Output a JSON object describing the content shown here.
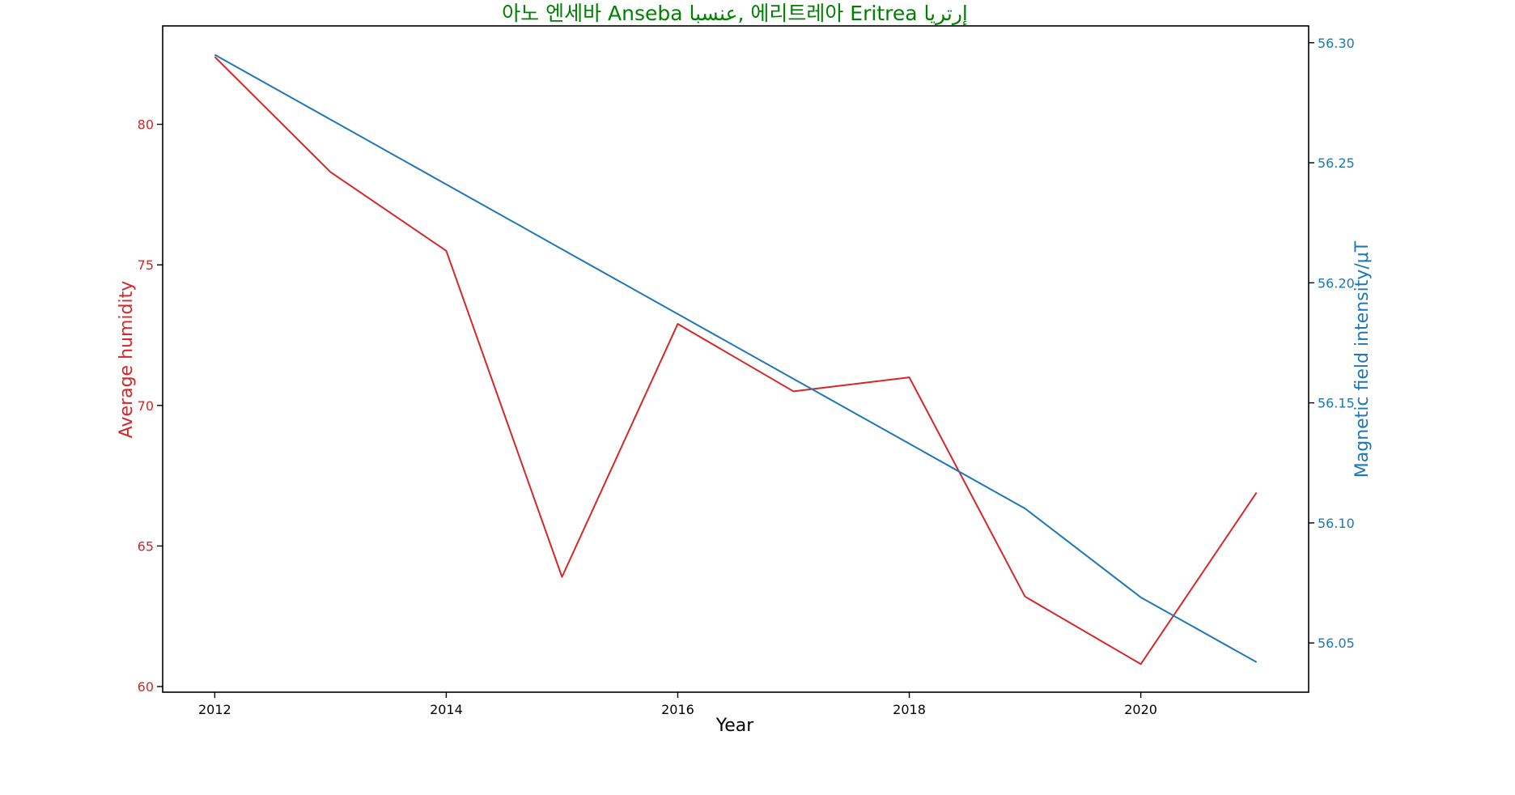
{
  "colors": {
    "title": "#008000",
    "left_axis": "#d62728",
    "right_axis": "#1f77b4",
    "axes": "#000000",
    "background": "#ffffff"
  },
  "chart_data": {
    "type": "line",
    "title": "아노 엔세바 Anseba عنسبا, 에리트레아 Eritrea إرتريا",
    "xlabel": "Year",
    "ylabel_left": "Average humidity",
    "ylabel_right": "Magnetic field intensity/μT",
    "x": [
      2012,
      2013,
      2014,
      2015,
      2016,
      2017,
      2018,
      2019,
      2020,
      2021
    ],
    "x_ticks": [
      2012,
      2014,
      2016,
      2018,
      2020
    ],
    "x_tick_labels": [
      "2012",
      "2014",
      "2016",
      "2018",
      "2020"
    ],
    "xlim": [
      2011.55,
      2021.45
    ],
    "ylim_left": [
      59.8,
      83.5
    ],
    "ylim_right": [
      56.0295,
      56.307
    ],
    "y_ticks_left": [
      60,
      65,
      70,
      75,
      80
    ],
    "y_tick_labels_left": [
      "60",
      "65",
      "70",
      "75",
      "80"
    ],
    "y_ticks_right": [
      56.05,
      56.1,
      56.15,
      56.2,
      56.25,
      56.3
    ],
    "y_tick_labels_right": [
      "56.05",
      "56.10",
      "56.15",
      "56.20",
      "56.25",
      "56.30"
    ],
    "grid": false,
    "series": [
      {
        "axis": "left",
        "color": "#d62728",
        "values": [
          82.4,
          78.3,
          75.5,
          63.9,
          72.9,
          70.5,
          71.0,
          63.2,
          60.8,
          66.9
        ]
      },
      {
        "axis": "right",
        "color": "#1f77b4",
        "values": [
          56.295,
          56.268,
          56.241,
          56.214,
          56.187,
          56.16,
          56.133,
          56.106,
          56.069,
          56.042
        ]
      }
    ]
  }
}
